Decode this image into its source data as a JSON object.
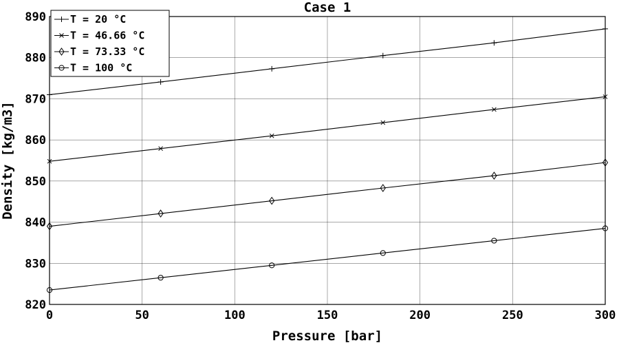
{
  "chart_data": {
    "type": "line",
    "title": "Case 1",
    "xlabel": "Pressure [bar]",
    "ylabel": "Density [kg/m3]",
    "xlim": [
      0,
      300
    ],
    "ylim": [
      820,
      890
    ],
    "xticks": [
      0,
      50,
      100,
      150,
      200,
      250,
      300
    ],
    "yticks": [
      820,
      830,
      840,
      850,
      860,
      870,
      880,
      890
    ],
    "grid": true,
    "legend_position": "top-left",
    "x": [
      0,
      60,
      120,
      180,
      240,
      300
    ],
    "series": [
      {
        "name": "T = 20 °C",
        "marker": "plus",
        "values": [
          871.0,
          874.1,
          877.3,
          880.5,
          883.6,
          887.0
        ]
      },
      {
        "name": "T = 46.66 °C",
        "marker": "x",
        "values": [
          854.8,
          857.9,
          861.0,
          864.2,
          867.4,
          870.5
        ]
      },
      {
        "name": "T = 73.33 °C",
        "marker": "diamond",
        "values": [
          839.0,
          842.1,
          845.2,
          848.3,
          851.3,
          854.5
        ]
      },
      {
        "name": "T = 100 °C",
        "marker": "circle",
        "values": [
          823.5,
          826.5,
          829.5,
          832.5,
          835.5,
          838.5
        ]
      }
    ]
  }
}
